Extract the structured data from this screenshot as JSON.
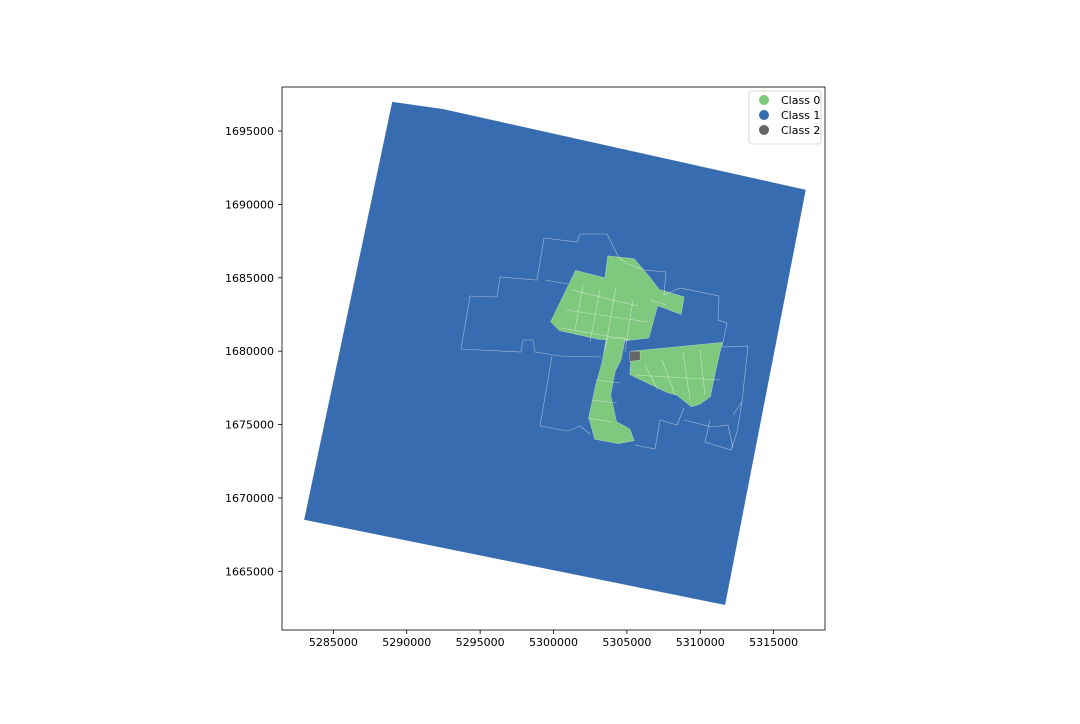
{
  "chart_data": {
    "type": "map",
    "title": "",
    "xlabel": "",
    "ylabel": "",
    "xlim": [
      5281500,
      5318500
    ],
    "ylim": [
      1661000,
      1698000
    ],
    "x_ticks": [
      5285000,
      5290000,
      5295000,
      5300000,
      5305000,
      5310000,
      5315000
    ],
    "y_ticks": [
      1665000,
      1670000,
      1675000,
      1680000,
      1685000,
      1690000,
      1695000
    ],
    "legend": {
      "placement": "top-right",
      "entries": [
        "Class 0",
        "Class 1",
        "Class 2"
      ]
    },
    "class_colors": {
      "Class 0": "#7fc97f",
      "Class 1": "#386cb0",
      "Class 2": "#666666"
    },
    "regions": [
      {
        "class": "Class 1",
        "polygon": [
          [
            5289000,
            1697000
          ],
          [
            5292500,
            1696500
          ],
          [
            5317200,
            1691000
          ],
          [
            5311700,
            1662700
          ],
          [
            5283000,
            1668500
          ]
        ]
      },
      {
        "class": "Class 0",
        "polygon": [
          [
            5301500,
            1685500
          ],
          [
            5303500,
            1685000
          ],
          [
            5303700,
            1686500
          ],
          [
            5305500,
            1686300
          ],
          [
            5306600,
            1685000
          ],
          [
            5307200,
            1684200
          ],
          [
            5308900,
            1683700
          ],
          [
            5308700,
            1682500
          ],
          [
            5307100,
            1683100
          ],
          [
            5306500,
            1680900
          ],
          [
            5304800,
            1680700
          ],
          [
            5303100,
            1680800
          ],
          [
            5300400,
            1681400
          ],
          [
            5299800,
            1682000
          ]
        ]
      },
      {
        "class": "Class 0",
        "polygon": [
          [
            5303600,
            1680900
          ],
          [
            5304900,
            1680900
          ],
          [
            5304600,
            1679400
          ],
          [
            5304200,
            1678600
          ],
          [
            5303900,
            1677000
          ],
          [
            5304300,
            1675200
          ],
          [
            5305200,
            1674700
          ],
          [
            5305500,
            1673900
          ],
          [
            5304400,
            1673700
          ],
          [
            5302800,
            1674000
          ],
          [
            5302400,
            1675500
          ],
          [
            5302900,
            1677800
          ],
          [
            5303300,
            1679200
          ]
        ]
      },
      {
        "class": "Class 0",
        "polygon": [
          [
            5305300,
            1680000
          ],
          [
            5311500,
            1680600
          ],
          [
            5311000,
            1678400
          ],
          [
            5310700,
            1676900
          ],
          [
            5310000,
            1676400
          ],
          [
            5309400,
            1676200
          ],
          [
            5308400,
            1677000
          ],
          [
            5307700,
            1677200
          ],
          [
            5305200,
            1678400
          ]
        ]
      },
      {
        "class": "Class 2",
        "polygon": [
          [
            5305200,
            1680000
          ],
          [
            5305900,
            1680000
          ],
          [
            5305900,
            1679400
          ],
          [
            5305200,
            1679300
          ]
        ]
      }
    ]
  }
}
